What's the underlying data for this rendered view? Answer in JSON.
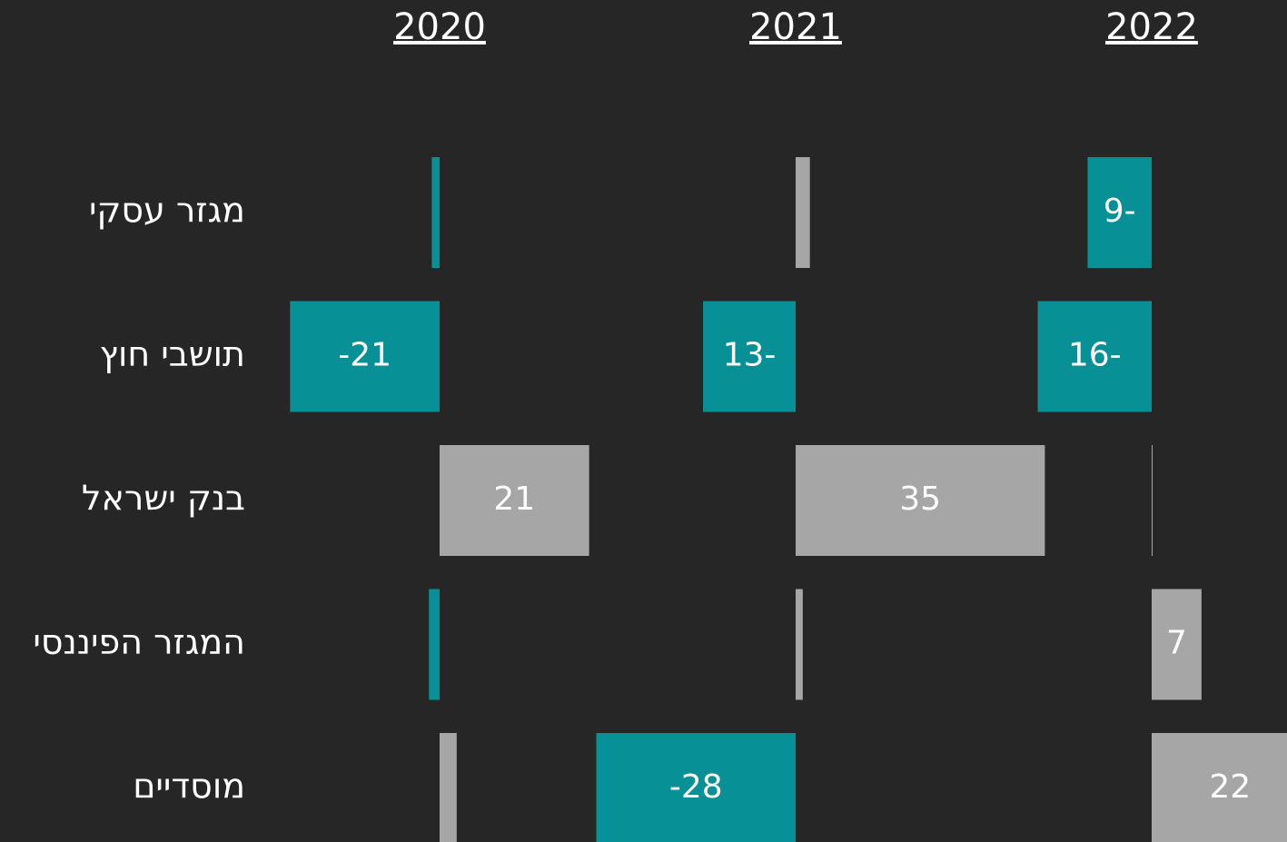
{
  "chart_data": {
    "type": "bar",
    "orientation": "horizontal",
    "categories": [
      "מגזר עסקי",
      "תושבי חוץ",
      "בנק ישראל",
      "המגזר הפיננסי",
      "מוסדיים"
    ],
    "positive_color": "#a6a6a6",
    "negative_color": "#079196",
    "xlim": [
      -25,
      25
    ],
    "series": [
      {
        "name": "2020",
        "values": [
          -1.1,
          -21,
          21,
          -1.5,
          2.4
        ],
        "value_labels": [
          null,
          "-21",
          "21",
          null,
          null
        ]
      },
      {
        "name": "2021",
        "values": [
          2,
          -13,
          35,
          1,
          -28
        ],
        "value_labels": [
          null,
          "13-",
          "35",
          null,
          "-28"
        ]
      },
      {
        "name": "2022",
        "values": [
          -9,
          -16,
          0.1,
          7,
          22
        ],
        "value_labels": [
          "9-",
          "16-",
          null,
          "7",
          "22"
        ]
      }
    ]
  }
}
